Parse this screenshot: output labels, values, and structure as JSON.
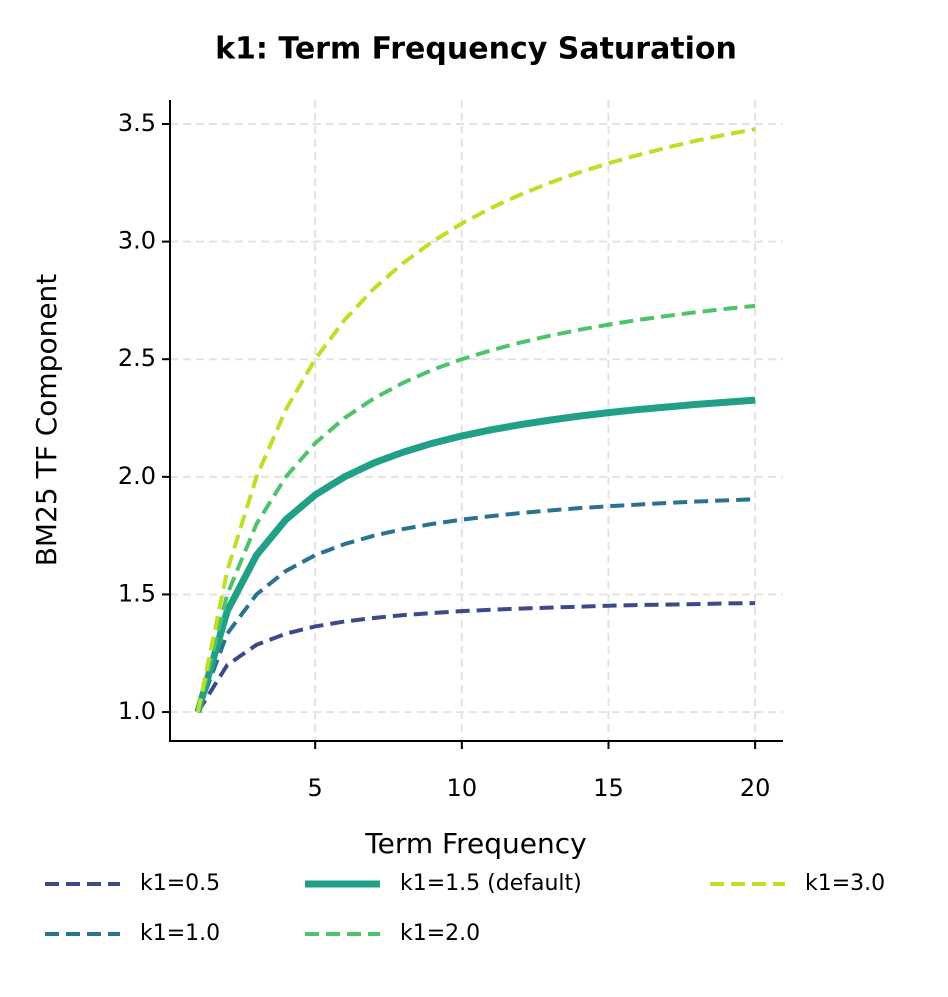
{
  "chart_data": {
    "type": "line",
    "title": "k1: Term Frequency Saturation",
    "x_label": "Term Frequency",
    "y_label": "BM25 TF Component",
    "x": [
      1,
      2,
      3,
      4,
      5,
      6,
      7,
      8,
      9,
      10,
      11,
      12,
      13,
      14,
      15,
      16,
      17,
      18,
      19,
      20
    ],
    "series": [
      {
        "name": "k1=0.5",
        "color": "#3e4989",
        "dashed": true,
        "values": [
          1.0,
          1.2,
          1.286,
          1.333,
          1.364,
          1.385,
          1.4,
          1.412,
          1.421,
          1.429,
          1.435,
          1.44,
          1.444,
          1.448,
          1.452,
          1.455,
          1.457,
          1.459,
          1.462,
          1.463
        ]
      },
      {
        "name": "k1=1.0",
        "color": "#2c728e",
        "dashed": true,
        "values": [
          1.0,
          1.333,
          1.5,
          1.6,
          1.667,
          1.714,
          1.75,
          1.778,
          1.8,
          1.818,
          1.833,
          1.846,
          1.857,
          1.867,
          1.875,
          1.882,
          1.889,
          1.895,
          1.9,
          1.905
        ]
      },
      {
        "name": "k1=1.5 (default)",
        "color": "#21a087",
        "dashed": false,
        "values": [
          1.0,
          1.429,
          1.667,
          1.818,
          1.923,
          2.0,
          2.059,
          2.105,
          2.143,
          2.174,
          2.2,
          2.222,
          2.241,
          2.258,
          2.273,
          2.286,
          2.297,
          2.308,
          2.317,
          2.326
        ]
      },
      {
        "name": "k1=2.0",
        "color": "#4ec36b",
        "dashed": true,
        "values": [
          1.0,
          1.5,
          1.8,
          2.0,
          2.143,
          2.25,
          2.333,
          2.4,
          2.455,
          2.5,
          2.538,
          2.571,
          2.6,
          2.625,
          2.647,
          2.667,
          2.684,
          2.7,
          2.714,
          2.727
        ]
      },
      {
        "name": "k1=3.0",
        "color": "#bddf26",
        "dashed": true,
        "values": [
          1.0,
          1.6,
          2.0,
          2.286,
          2.5,
          2.667,
          2.8,
          2.909,
          3.0,
          3.077,
          3.143,
          3.2,
          3.25,
          3.294,
          3.333,
          3.368,
          3.4,
          3.429,
          3.455,
          3.478
        ]
      }
    ],
    "xlim": [
      0.05,
      20.95
    ],
    "ylim": [
      0.877,
      3.602
    ],
    "xticks": [
      5,
      10,
      15,
      20
    ],
    "yticks": [
      {
        "value": 1.0,
        "label": "1.0"
      },
      1.5,
      {
        "value": 2.0,
        "label": "2.0"
      },
      2.5,
      {
        "value": 3.0,
        "label": "3.0"
      },
      3.5
    ],
    "grid": true,
    "legend": "bottom"
  }
}
